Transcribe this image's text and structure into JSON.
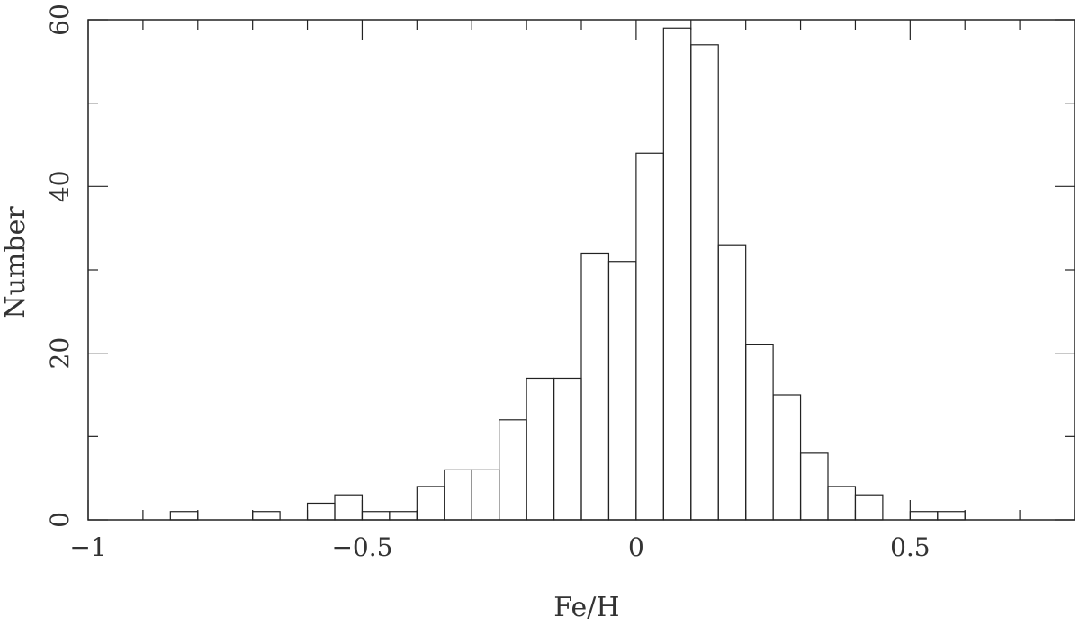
{
  "chart_data": {
    "type": "bar",
    "title": "",
    "xlabel": "Fe/H",
    "ylabel": "Number",
    "xlim": [
      -1.0,
      0.8
    ],
    "ylim": [
      0,
      60
    ],
    "grid": false,
    "bin_width": 0.05,
    "x_ticks": [
      {
        "value": -1.0,
        "label": "−1"
      },
      {
        "value": -0.5,
        "label": "−0.5"
      },
      {
        "value": 0.0,
        "label": "0"
      },
      {
        "value": 0.5,
        "label": "0.5"
      }
    ],
    "y_ticks": [
      {
        "value": 0,
        "label": "0"
      },
      {
        "value": 20,
        "label": "20"
      },
      {
        "value": 40,
        "label": "40"
      },
      {
        "value": 60,
        "label": "60"
      }
    ],
    "bins": [
      {
        "start": -0.85,
        "count": 1
      },
      {
        "start": -0.7,
        "count": 1
      },
      {
        "start": -0.6,
        "count": 2
      },
      {
        "start": -0.55,
        "count": 3
      },
      {
        "start": -0.5,
        "count": 1
      },
      {
        "start": -0.45,
        "count": 1
      },
      {
        "start": -0.4,
        "count": 4
      },
      {
        "start": -0.35,
        "count": 6
      },
      {
        "start": -0.3,
        "count": 6
      },
      {
        "start": -0.25,
        "count": 12
      },
      {
        "start": -0.2,
        "count": 17
      },
      {
        "start": -0.15,
        "count": 17
      },
      {
        "start": -0.1,
        "count": 32
      },
      {
        "start": -0.05,
        "count": 31
      },
      {
        "start": 0.0,
        "count": 44
      },
      {
        "start": 0.05,
        "count": 59
      },
      {
        "start": 0.1,
        "count": 57
      },
      {
        "start": 0.15,
        "count": 33
      },
      {
        "start": 0.2,
        "count": 21
      },
      {
        "start": 0.25,
        "count": 15
      },
      {
        "start": 0.3,
        "count": 8
      },
      {
        "start": 0.35,
        "count": 4
      },
      {
        "start": 0.4,
        "count": 3
      },
      {
        "start": 0.5,
        "count": 1
      },
      {
        "start": 0.55,
        "count": 1
      }
    ]
  }
}
